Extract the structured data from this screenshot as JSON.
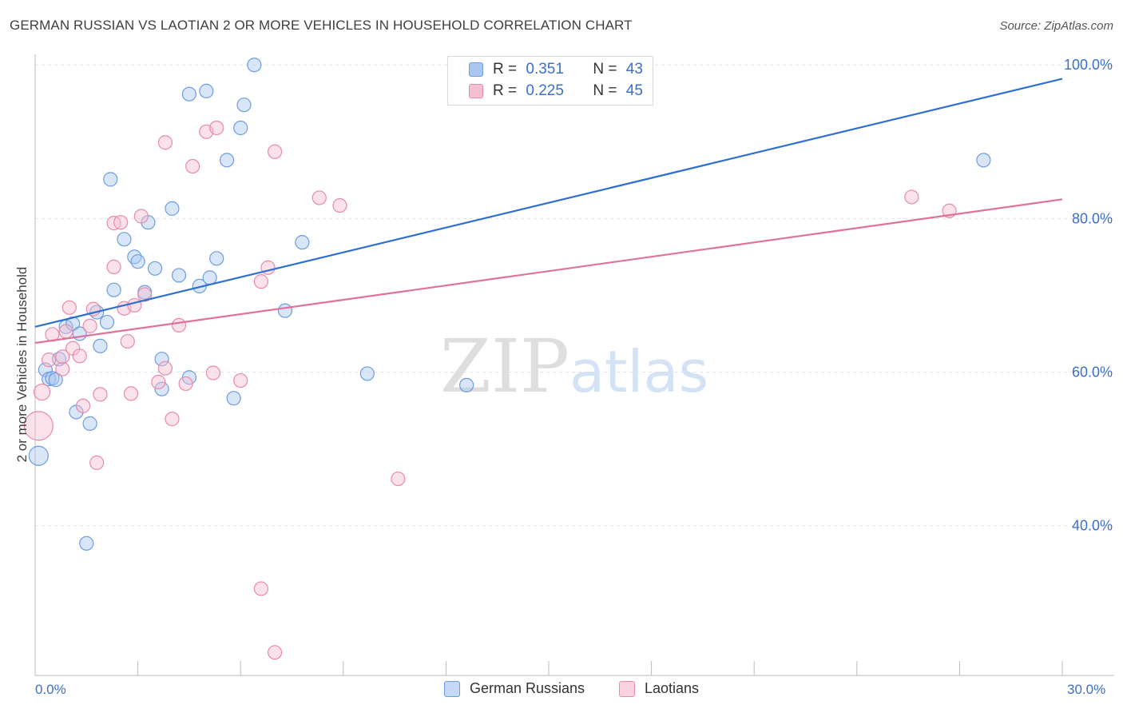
{
  "title": "GERMAN RUSSIAN VS LAOTIAN 2 OR MORE VEHICLES IN HOUSEHOLD CORRELATION CHART",
  "source": "Source: ZipAtlas.com",
  "watermark": {
    "zip": "ZIP",
    "atlas": "atlas"
  },
  "legend_top": {
    "rows": [
      {
        "r_label": "R =",
        "r_value": "0.351",
        "n_label": "N =",
        "n_value": "43",
        "color": "#a9c7f0",
        "border": "#6d9de0"
      },
      {
        "r_label": "R =",
        "r_value": "0.225",
        "n_label": "N =",
        "n_value": "45",
        "color": "#f6bfd0",
        "border": "#e88aa8"
      }
    ]
  },
  "legend_bottom": [
    {
      "label": "German Russians",
      "color": "#c5d8f5",
      "border": "#6d9de0"
    },
    {
      "label": "Laotians",
      "color": "#fbd3df",
      "border": "#e88aa8"
    }
  ],
  "x_ticks": {
    "left": "0.0%",
    "right": "30.0%"
  },
  "chart_data": {
    "type": "scatter",
    "title": "GERMAN RUSSIAN VS LAOTIAN 2 OR MORE VEHICLES IN HOUSEHOLD CORRELATION CHART",
    "xlabel": "",
    "ylabel": "2 or more Vehicles in Household",
    "xlim": [
      0,
      30
    ],
    "ylim": [
      20.5,
      102
    ],
    "y_ticks": [
      {
        "value": 100,
        "label": "100.0%"
      },
      {
        "value": 80,
        "label": "80.0%"
      },
      {
        "value": 60,
        "label": "60.0%"
      },
      {
        "value": 40,
        "label": "40.0%"
      }
    ],
    "grid": true,
    "series": [
      {
        "name": "German Russians",
        "color": "#6d9de0",
        "fill": "#a9c7f0",
        "trend": {
          "x": [
            0,
            30
          ],
          "y": [
            65.9,
            98.2
          ],
          "color": "#2f6fd1"
        },
        "points": [
          {
            "x": 0.1,
            "y": 49.1,
            "s": 12
          },
          {
            "x": 0.3,
            "y": 60.3
          },
          {
            "x": 0.4,
            "y": 59.1
          },
          {
            "x": 0.5,
            "y": 59.2
          },
          {
            "x": 0.6,
            "y": 59.0
          },
          {
            "x": 0.7,
            "y": 61.7
          },
          {
            "x": 0.9,
            "y": 65.9
          },
          {
            "x": 1.1,
            "y": 66.3
          },
          {
            "x": 1.3,
            "y": 65.0
          },
          {
            "x": 1.2,
            "y": 54.8
          },
          {
            "x": 1.6,
            "y": 53.3
          },
          {
            "x": 1.5,
            "y": 37.7
          },
          {
            "x": 1.8,
            "y": 67.8
          },
          {
            "x": 1.9,
            "y": 63.4
          },
          {
            "x": 2.1,
            "y": 66.5
          },
          {
            "x": 2.2,
            "y": 85.1
          },
          {
            "x": 2.3,
            "y": 70.7
          },
          {
            "x": 2.6,
            "y": 77.3
          },
          {
            "x": 2.9,
            "y": 75.0
          },
          {
            "x": 3.0,
            "y": 74.4
          },
          {
            "x": 3.2,
            "y": 70.4
          },
          {
            "x": 3.3,
            "y": 79.5
          },
          {
            "x": 3.5,
            "y": 73.5
          },
          {
            "x": 3.7,
            "y": 57.8
          },
          {
            "x": 3.7,
            "y": 61.7
          },
          {
            "x": 4.0,
            "y": 81.3
          },
          {
            "x": 4.2,
            "y": 72.6
          },
          {
            "x": 4.5,
            "y": 59.3
          },
          {
            "x": 4.5,
            "y": 96.2
          },
          {
            "x": 4.8,
            "y": 71.2
          },
          {
            "x": 5.0,
            "y": 96.6
          },
          {
            "x": 5.1,
            "y": 72.3
          },
          {
            "x": 5.3,
            "y": 74.8
          },
          {
            "x": 5.6,
            "y": 87.6
          },
          {
            "x": 5.8,
            "y": 56.6
          },
          {
            "x": 6.0,
            "y": 91.8
          },
          {
            "x": 6.1,
            "y": 94.8
          },
          {
            "x": 6.4,
            "y": 100.0
          },
          {
            "x": 7.3,
            "y": 68.0
          },
          {
            "x": 7.8,
            "y": 76.9
          },
          {
            "x": 9.7,
            "y": 59.8
          },
          {
            "x": 12.6,
            "y": 58.3
          },
          {
            "x": 27.7,
            "y": 87.6
          }
        ]
      },
      {
        "name": "Laotians",
        "color": "#e88aa8",
        "fill": "#f6bfd0",
        "trend": {
          "x": [
            0,
            30
          ],
          "y": [
            63.8,
            82.5
          ],
          "color": "#e0719a"
        },
        "points": [
          {
            "x": 0.1,
            "y": 53.0,
            "s": 18
          },
          {
            "x": 0.2,
            "y": 57.4,
            "s": 10
          },
          {
            "x": 0.4,
            "y": 61.6
          },
          {
            "x": 0.5,
            "y": 64.9
          },
          {
            "x": 0.8,
            "y": 60.4
          },
          {
            "x": 0.8,
            "y": 62.0
          },
          {
            "x": 0.9,
            "y": 65.3
          },
          {
            "x": 1.0,
            "y": 68.4
          },
          {
            "x": 1.1,
            "y": 63.1
          },
          {
            "x": 1.3,
            "y": 62.1
          },
          {
            "x": 1.4,
            "y": 55.6
          },
          {
            "x": 1.6,
            "y": 66.0
          },
          {
            "x": 1.7,
            "y": 68.2
          },
          {
            "x": 1.8,
            "y": 48.2
          },
          {
            "x": 1.9,
            "y": 57.1
          },
          {
            "x": 2.3,
            "y": 73.7
          },
          {
            "x": 2.3,
            "y": 79.4
          },
          {
            "x": 2.5,
            "y": 79.5
          },
          {
            "x": 2.6,
            "y": 68.3
          },
          {
            "x": 2.7,
            "y": 64.0
          },
          {
            "x": 2.8,
            "y": 57.2
          },
          {
            "x": 2.9,
            "y": 68.7
          },
          {
            "x": 3.1,
            "y": 80.3
          },
          {
            "x": 3.2,
            "y": 70.1
          },
          {
            "x": 3.6,
            "y": 58.7
          },
          {
            "x": 3.8,
            "y": 60.5
          },
          {
            "x": 3.8,
            "y": 89.9
          },
          {
            "x": 4.0,
            "y": 53.9
          },
          {
            "x": 4.2,
            "y": 66.1
          },
          {
            "x": 4.4,
            "y": 58.5
          },
          {
            "x": 4.6,
            "y": 86.8
          },
          {
            "x": 5.0,
            "y": 91.3
          },
          {
            "x": 5.2,
            "y": 59.9
          },
          {
            "x": 5.3,
            "y": 91.8
          },
          {
            "x": 6.0,
            "y": 58.9
          },
          {
            "x": 6.6,
            "y": 71.8
          },
          {
            "x": 6.6,
            "y": 31.8
          },
          {
            "x": 6.8,
            "y": 73.6
          },
          {
            "x": 7.0,
            "y": 88.7
          },
          {
            "x": 7.0,
            "y": 23.5
          },
          {
            "x": 8.3,
            "y": 82.7
          },
          {
            "x": 8.9,
            "y": 81.7
          },
          {
            "x": 10.6,
            "y": 46.1
          },
          {
            "x": 25.6,
            "y": 82.8
          },
          {
            "x": 26.7,
            "y": 81.0
          }
        ]
      }
    ]
  }
}
